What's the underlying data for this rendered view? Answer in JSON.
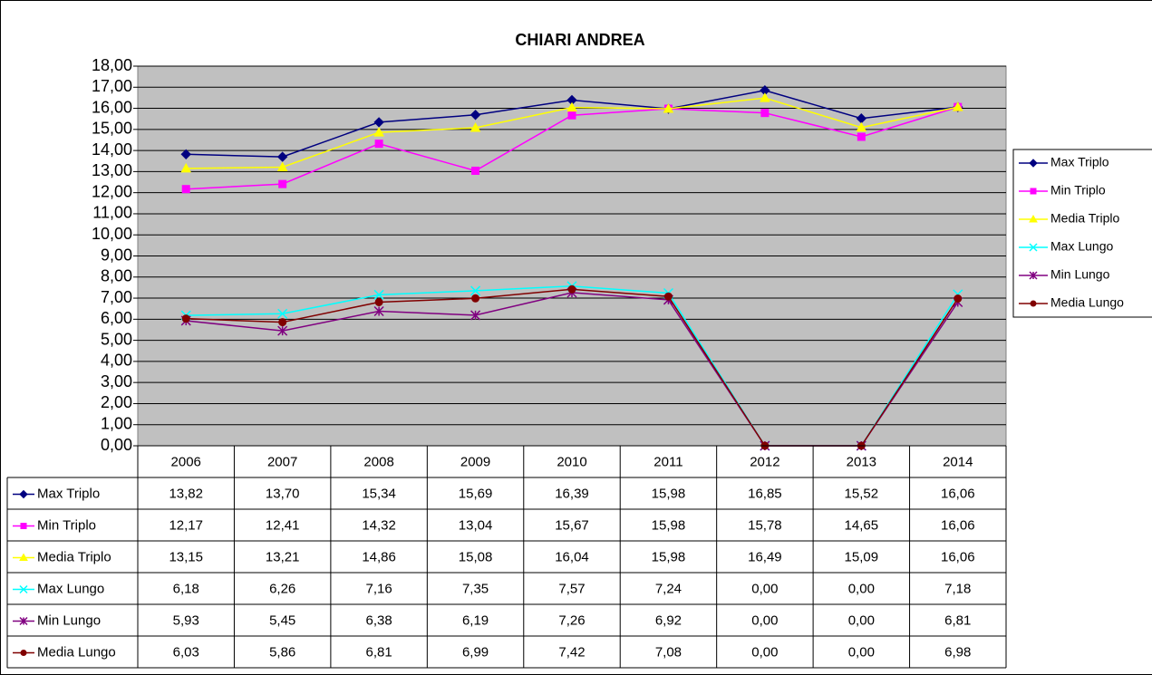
{
  "chart_data": {
    "type": "line",
    "title": "CHIARI ANDREA",
    "categories": [
      "2006",
      "2007",
      "2008",
      "2009",
      "2010",
      "2011",
      "2012",
      "2013",
      "2014"
    ],
    "ylim": [
      0,
      18
    ],
    "yticks": [
      {
        "value": 0,
        "label": "0,00"
      },
      {
        "value": 1,
        "label": "1,00"
      },
      {
        "value": 2,
        "label": "2,00"
      },
      {
        "value": 3,
        "label": "3,00"
      },
      {
        "value": 4,
        "label": "4,00"
      },
      {
        "value": 5,
        "label": "5,00"
      },
      {
        "value": 6,
        "label": "6,00"
      },
      {
        "value": 7,
        "label": "7,00"
      },
      {
        "value": 8,
        "label": "8,00"
      },
      {
        "value": 9,
        "label": "9,00"
      },
      {
        "value": 10,
        "label": "10,00"
      },
      {
        "value": 11,
        "label": "11,00"
      },
      {
        "value": 12,
        "label": "12,00"
      },
      {
        "value": 13,
        "label": "13,00"
      },
      {
        "value": 14,
        "label": "14,00"
      },
      {
        "value": 15,
        "label": "15,00"
      },
      {
        "value": 16,
        "label": "16,00"
      },
      {
        "value": 17,
        "label": "17,00"
      },
      {
        "value": 18,
        "label": "18,00"
      }
    ],
    "grid": true,
    "legend": "right",
    "plot_background": "#c0c0c0",
    "series": [
      {
        "name": "Max Triplo",
        "color": "#000080",
        "marker": "diamond",
        "values": [
          13.82,
          13.7,
          15.34,
          15.69,
          16.39,
          15.98,
          16.85,
          15.52,
          16.06
        ],
        "value_labels": [
          "13,82",
          "13,70",
          "15,34",
          "15,69",
          "16,39",
          "15,98",
          "16,85",
          "15,52",
          "16,06"
        ]
      },
      {
        "name": "Min Triplo",
        "color": "#ff00ff",
        "marker": "square",
        "values": [
          12.17,
          12.41,
          14.32,
          13.04,
          15.67,
          15.98,
          15.78,
          14.65,
          16.06
        ],
        "value_labels": [
          "12,17",
          "12,41",
          "14,32",
          "13,04",
          "15,67",
          "15,98",
          "15,78",
          "14,65",
          "16,06"
        ]
      },
      {
        "name": "Media Triplo",
        "color": "#ffff00",
        "marker": "triangle",
        "values": [
          13.15,
          13.21,
          14.86,
          15.08,
          16.04,
          15.98,
          16.49,
          15.09,
          16.06
        ],
        "value_labels": [
          "13,15",
          "13,21",
          "14,86",
          "15,08",
          "16,04",
          "15,98",
          "16,49",
          "15,09",
          "16,06"
        ]
      },
      {
        "name": "Max Lungo",
        "color": "#00ffff",
        "marker": "x",
        "values": [
          6.18,
          6.26,
          7.16,
          7.35,
          7.57,
          7.24,
          0,
          0,
          7.18
        ],
        "value_labels": [
          "6,18",
          "6,26",
          "7,16",
          "7,35",
          "7,57",
          "7,24",
          "0,00",
          "0,00",
          "7,18"
        ]
      },
      {
        "name": "Min Lungo",
        "color": "#800080",
        "marker": "star",
        "values": [
          5.93,
          5.45,
          6.38,
          6.19,
          7.26,
          6.92,
          0,
          0,
          6.81
        ],
        "value_labels": [
          "5,93",
          "5,45",
          "6,38",
          "6,19",
          "7,26",
          "6,92",
          "0,00",
          "0,00",
          "6,81"
        ]
      },
      {
        "name": "Media Lungo",
        "color": "#800000",
        "marker": "circle",
        "values": [
          6.03,
          5.86,
          6.81,
          6.99,
          7.42,
          7.08,
          0,
          0,
          6.98
        ],
        "value_labels": [
          "6,03",
          "5,86",
          "6,81",
          "6,99",
          "7,42",
          "7,08",
          "0,00",
          "0,00",
          "6,98"
        ]
      }
    ]
  }
}
